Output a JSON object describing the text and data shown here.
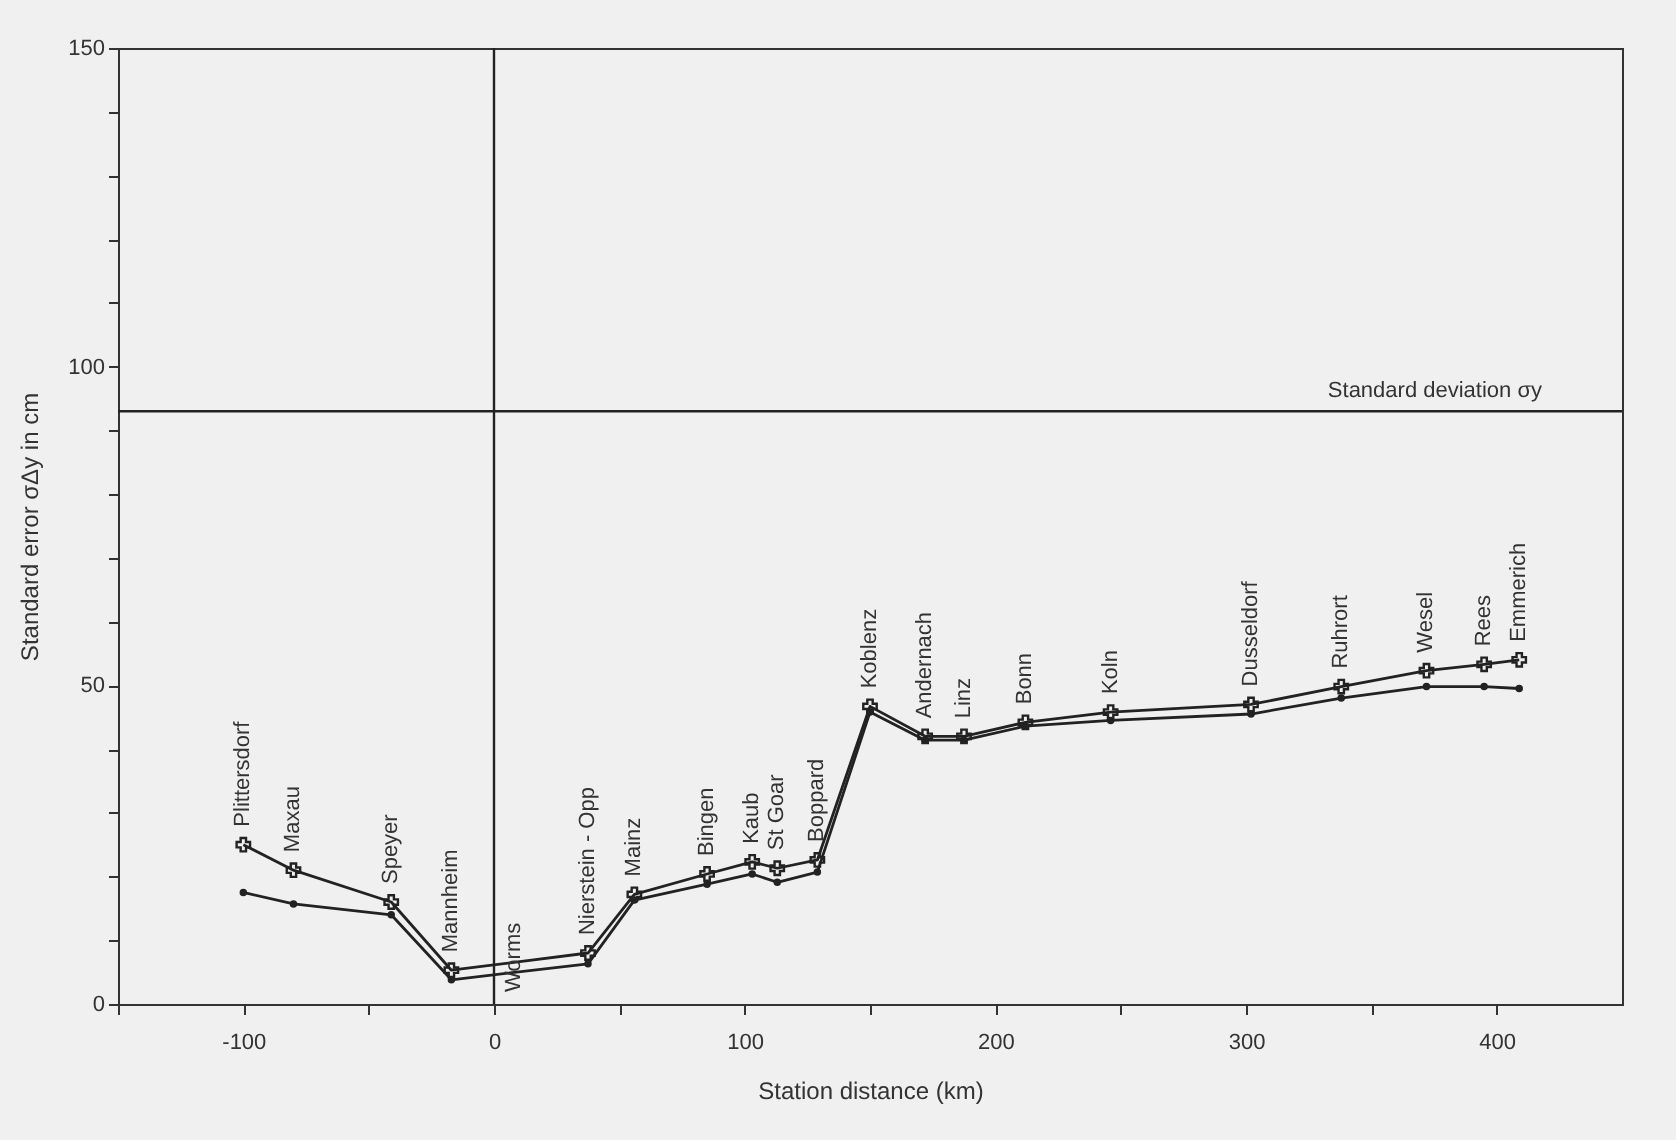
{
  "chart_data": {
    "type": "line",
    "xlabel": "Station distance (km)",
    "ylabel": "Standard error σΔy in cm",
    "xlim": [
      -150,
      450
    ],
    "xticks": [
      {
        "value": -150,
        "label": null
      },
      -100,
      {
        "value": -50,
        "label": null
      },
      0,
      {
        "value": 50,
        "label": null
      },
      100,
      {
        "value": 150,
        "label": null
      },
      200,
      {
        "value": 250,
        "label": null
      },
      300,
      {
        "value": 350,
        "label": null
      },
      400
    ],
    "ylim": [
      0,
      150
    ],
    "yticks": [
      0,
      {
        "value": 10,
        "label": null
      },
      {
        "value": 20,
        "label": null
      },
      {
        "value": 30,
        "label": null
      },
      {
        "value": 40,
        "label": null
      },
      50,
      {
        "value": 60,
        "label": null
      },
      {
        "value": 70,
        "label": null
      },
      {
        "value": 80,
        "label": null
      },
      {
        "value": 90,
        "label": null
      },
      100,
      {
        "value": 110,
        "label": null
      },
      {
        "value": 120,
        "label": null
      },
      {
        "value": 130,
        "label": null
      },
      {
        "value": 140,
        "label": null
      },
      150
    ],
    "grid": false,
    "series": [
      {
        "color": "#222222",
        "marker": "cross",
        "x": [
          -100,
          -80,
          -41,
          -17,
          37.5,
          56,
          85,
          103,
          113,
          129,
          150,
          172,
          187.5,
          212,
          246,
          302,
          338,
          372,
          395,
          409
        ],
        "values": [
          25,
          21,
          16,
          5.3,
          8,
          17.2,
          20.4,
          22.3,
          21.3,
          22.6,
          46.7,
          42,
          42,
          44.2,
          45.8,
          47,
          49.8,
          52.3,
          53.3,
          54
        ]
      },
      {
        "color": "#222222",
        "marker": "circle",
        "x": [
          -100,
          -80,
          -41,
          -17,
          37.5,
          56,
          85,
          103,
          113,
          129,
          150,
          172,
          187.5,
          212,
          246,
          302,
          338,
          372,
          395,
          409
        ],
        "values": [
          17.5,
          15.7,
          14,
          3.8,
          6.3,
          16.3,
          18.8,
          20.4,
          19.1,
          20.7,
          45.8,
          41.4,
          41.4,
          43.6,
          44.5,
          45.5,
          48,
          49.8,
          49.8,
          49.5
        ]
      }
    ],
    "ref_lines": [
      {
        "axis": "y",
        "value": 93,
        "label": "Standard deviation σy",
        "color": "#222222"
      },
      {
        "axis": "x",
        "value": 0,
        "label": "Worms",
        "color": "#222222"
      }
    ],
    "annotations": [
      {
        "text": "Plittersdorf",
        "x": -100,
        "y": 25
      },
      {
        "text": "Maxau",
        "x": -80,
        "y": 21
      },
      {
        "text": "Speyer",
        "x": -41,
        "y": 16
      },
      {
        "text": "Mannheim",
        "x": -17,
        "y": 5.3
      },
      {
        "text": "Nierstein - Opp",
        "x": 37.5,
        "y": 8
      },
      {
        "text": "Mainz",
        "x": 56,
        "y": 17.2
      },
      {
        "text": "Bingen",
        "x": 85,
        "y": 20.4
      },
      {
        "text": "Kaub",
        "x": 103,
        "y": 22.3
      },
      {
        "text": "St Goar",
        "x": 113,
        "y": 21.3
      },
      {
        "text": "Boppard",
        "x": 129,
        "y": 22.6
      },
      {
        "text": "Koblenz",
        "x": 150,
        "y": 46.7
      },
      {
        "text": "Andernach",
        "x": 172,
        "y": 42
      },
      {
        "text": "Linz",
        "x": 187.5,
        "y": 42
      },
      {
        "text": "Bonn",
        "x": 212,
        "y": 44.2
      },
      {
        "text": "Koln",
        "x": 246,
        "y": 45.8
      },
      {
        "text": "Dusseldorf",
        "x": 302,
        "y": 47
      },
      {
        "text": "Ruhrort",
        "x": 338,
        "y": 49.8
      },
      {
        "text": "Wesel",
        "x": 372,
        "y": 52.3
      },
      {
        "text": "Rees",
        "x": 395,
        "y": 53.3
      },
      {
        "text": "Emmerich",
        "x": 409,
        "y": 54
      }
    ]
  }
}
